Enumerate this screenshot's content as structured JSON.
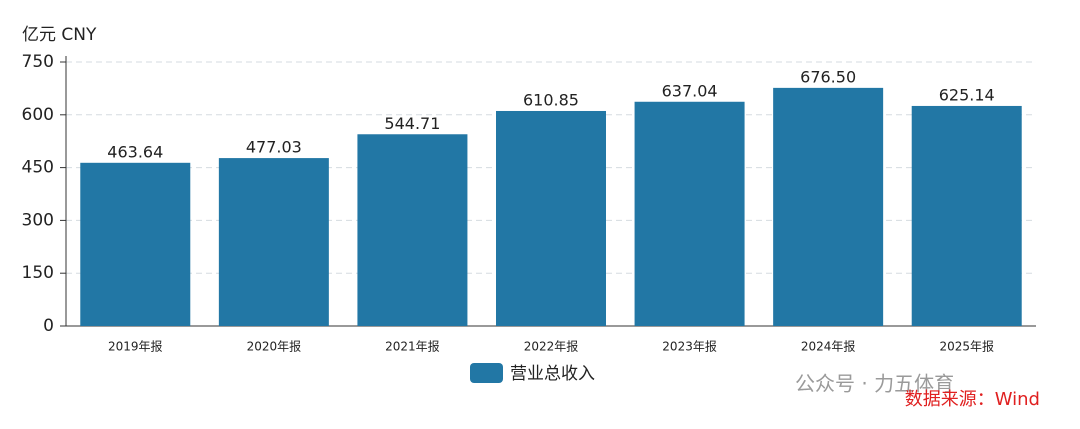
{
  "chart_data": {
    "type": "bar",
    "y_axis_label": "亿元  CNY",
    "categories": [
      "2019年报",
      "2020年报",
      "2021年报",
      "2022年报",
      "2023年报",
      "2024年报",
      "2025年报"
    ],
    "series": [
      {
        "name": "营业总收入",
        "color": "#2277a5",
        "values": [
          463.64,
          477.03,
          544.71,
          610.85,
          637.04,
          676.5,
          625.14
        ],
        "value_labels": [
          "463.64",
          "477.03",
          "544.71",
          "610.85",
          "637.04",
          "676.50",
          "625.14"
        ]
      }
    ],
    "ylim": [
      0,
      750
    ],
    "yticks": [
      0,
      150,
      300,
      450,
      600,
      750
    ],
    "grid": true,
    "source": "数据来源：Wind",
    "watermark": "公众号 · 力五体育"
  }
}
